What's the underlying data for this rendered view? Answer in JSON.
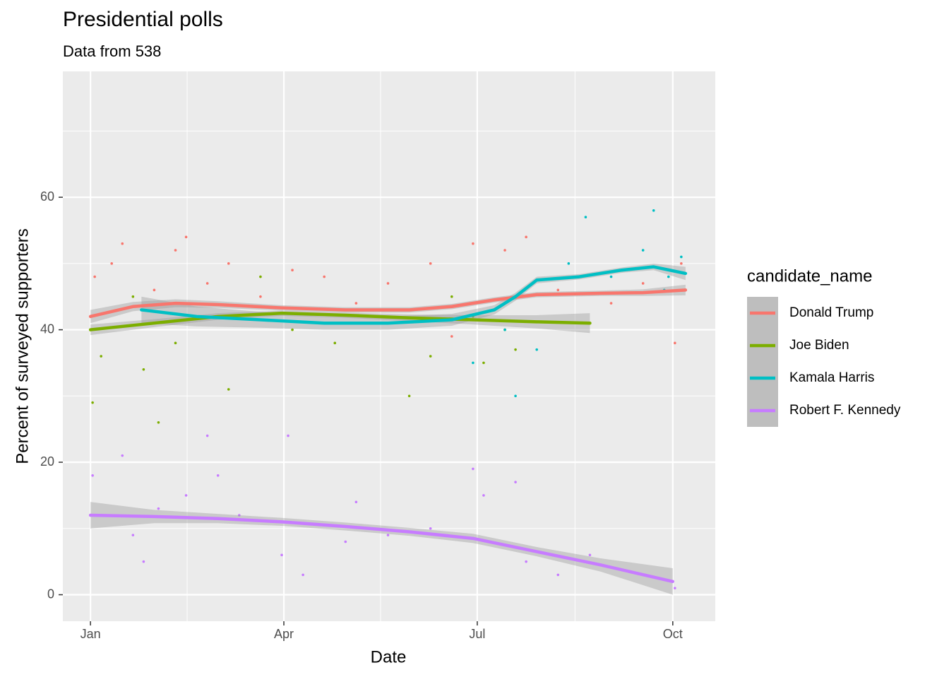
{
  "chart_data": {
    "type": "scatter-smooth",
    "title": "Presidential polls",
    "subtitle": "Data from 538",
    "x_label": "Date",
    "y_label": "Percent of surveyed supporters",
    "legend_title": "candidate_name",
    "xlim": [
      -13,
      294
    ],
    "ylim": [
      -4,
      79
    ],
    "xticks": [
      {
        "value": 0,
        "label": "Jan"
      },
      {
        "value": 91,
        "label": "Apr"
      },
      {
        "value": 182,
        "label": "Jul"
      },
      {
        "value": 274,
        "label": "Oct"
      }
    ],
    "yticks": [
      0,
      20,
      40,
      60
    ],
    "grid": true,
    "series": [
      {
        "name": "Donald Trump",
        "color": "#F8766D",
        "x": [
          0,
          20,
          40,
          60,
          90,
          120,
          150,
          170,
          190,
          210,
          240,
          260,
          280
        ],
        "values": [
          42,
          43.5,
          44,
          43.8,
          43.3,
          43,
          43,
          43.5,
          44.5,
          45.3,
          45.5,
          45.6,
          46
        ],
        "lower": [
          41,
          42.8,
          43.4,
          43.3,
          42.9,
          42.6,
          42.6,
          43.1,
          44.1,
          44.9,
          45.1,
          45.1,
          45.2
        ],
        "upper": [
          43,
          44.2,
          44.6,
          44.3,
          43.7,
          43.4,
          43.4,
          43.9,
          44.9,
          45.7,
          45.9,
          46.1,
          46.8
        ],
        "points_x": [
          2,
          10,
          15,
          30,
          40,
          45,
          55,
          65,
          80,
          95,
          110,
          125,
          140,
          160,
          170,
          180,
          195,
          205,
          220,
          245,
          260,
          275,
          278
        ],
        "points_y": [
          48,
          50,
          53,
          46,
          52,
          54,
          47,
          50,
          45,
          49,
          48,
          44,
          47,
          50,
          39,
          53,
          52,
          54,
          46,
          44,
          47,
          38,
          50
        ]
      },
      {
        "name": "Joe Biden",
        "color": "#7CAE00",
        "x": [
          0,
          30,
          60,
          90,
          120,
          150,
          180,
          210,
          235
        ],
        "values": [
          40,
          41,
          42,
          42.5,
          42.2,
          41.8,
          41.5,
          41.2,
          41
        ],
        "lower": [
          39.2,
          40.4,
          41.5,
          42.1,
          41.8,
          41.3,
          40.8,
          40.2,
          39.5
        ],
        "upper": [
          40.8,
          41.6,
          42.5,
          42.9,
          42.6,
          42.3,
          42.2,
          42.2,
          42.5
        ],
        "points_x": [
          1,
          5,
          20,
          25,
          32,
          40,
          60,
          65,
          80,
          95,
          115,
          130,
          150,
          160,
          170,
          180,
          185,
          195,
          200
        ],
        "points_y": [
          29,
          36,
          45,
          34,
          26,
          38,
          42,
          31,
          48,
          40,
          38,
          43,
          30,
          36,
          45,
          42,
          35,
          40,
          37
        ]
      },
      {
        "name": "Kamala Harris",
        "color": "#00BFC4",
        "x": [
          24,
          50,
          80,
          110,
          140,
          170,
          190,
          200,
          210,
          230,
          250,
          265,
          280
        ],
        "values": [
          43,
          42,
          41.5,
          41,
          41,
          41.5,
          43,
          45,
          47.5,
          48,
          49,
          49.5,
          48.5
        ],
        "lower": [
          41,
          40.5,
          40.3,
          40,
          40,
          40.6,
          42.3,
          44.4,
          47,
          47.6,
          48.6,
          49,
          47.5
        ],
        "upper": [
          45,
          43.5,
          42.7,
          42,
          42,
          42.4,
          43.7,
          45.6,
          48,
          48.4,
          49.4,
          50,
          49.5
        ],
        "points_x": [
          180,
          195,
          200,
          210,
          225,
          233,
          245,
          260,
          265,
          272,
          278,
          270
        ],
        "points_y": [
          35,
          40,
          30,
          37,
          50,
          57,
          48,
          52,
          58,
          48,
          51,
          46
        ]
      },
      {
        "name": "Robert F. Kennedy",
        "color": "#C77CFF",
        "x": [
          0,
          30,
          60,
          90,
          120,
          150,
          180,
          210,
          240,
          274
        ],
        "values": [
          12,
          11.8,
          11.5,
          11,
          10.3,
          9.5,
          8.5,
          6.5,
          4.5,
          2
        ],
        "lower": [
          10,
          10.8,
          10.8,
          10.4,
          9.7,
          8.9,
          7.8,
          5.8,
          3.5,
          0
        ],
        "upper": [
          14,
          12.8,
          12.2,
          11.6,
          10.9,
          10.1,
          9.2,
          7.2,
          5.5,
          4
        ],
        "points_x": [
          1,
          15,
          20,
          25,
          32,
          45,
          55,
          60,
          70,
          90,
          93,
          100,
          120,
          125,
          140,
          160,
          180,
          185,
          200,
          205,
          220,
          235,
          260,
          275
        ],
        "points_y": [
          18,
          21,
          9,
          5,
          13,
          15,
          24,
          18,
          12,
          6,
          24,
          3,
          8,
          14,
          9,
          10,
          19,
          15,
          17,
          5,
          3,
          6,
          3,
          1
        ]
      }
    ]
  }
}
